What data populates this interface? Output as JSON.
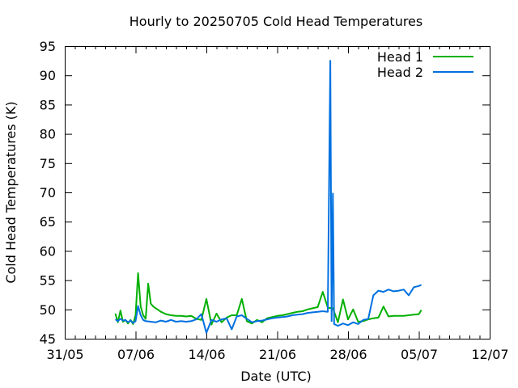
{
  "chart_data": {
    "type": "line",
    "title": "Hourly to 20250705 Cold Head Temperatures",
    "xlabel": "Date (UTC)",
    "ylabel": "Cold Head Temperatures (K)",
    "x_axis_type": "date",
    "xlim": [
      "2025-05-31",
      "2025-07-12"
    ],
    "ylim": [
      45,
      95
    ],
    "x_tick_labels": [
      "31/05",
      "07/06",
      "14/06",
      "21/06",
      "28/06",
      "05/07",
      "12/07"
    ],
    "x_tick_dates": [
      "2025-05-31",
      "2025-06-07",
      "2025-06-14",
      "2025-06-21",
      "2025-06-28",
      "2025-07-05",
      "2025-07-12"
    ],
    "y_ticks": [
      45,
      50,
      55,
      60,
      65,
      70,
      75,
      80,
      85,
      90,
      95
    ],
    "grid": false,
    "legend_position": "top-right",
    "colors": {
      "Head 1": "#00b000",
      "Head 2": "#0070e0"
    },
    "series": [
      {
        "name": "Head 1",
        "x": [
          "2025-06-05 00:00",
          "2025-06-05 06:00",
          "2025-06-05 12:00",
          "2025-06-05 18:00",
          "2025-06-06 00:00",
          "2025-06-06 06:00",
          "2025-06-06 12:00",
          "2025-06-06 18:00",
          "2025-06-07 00:00",
          "2025-06-07 06:00",
          "2025-06-07 12:00",
          "2025-06-07 18:00",
          "2025-06-08 00:00",
          "2025-06-08 06:00",
          "2025-06-08 12:00",
          "2025-06-08 18:00",
          "2025-06-09 00:00",
          "2025-06-09 12:00",
          "2025-06-10 00:00",
          "2025-06-10 12:00",
          "2025-06-11 00:00",
          "2025-06-11 12:00",
          "2025-06-12 00:00",
          "2025-06-12 12:00",
          "2025-06-13 00:00",
          "2025-06-13 12:00",
          "2025-06-14 00:00",
          "2025-06-14 12:00",
          "2025-06-15 00:00",
          "2025-06-15 12:00",
          "2025-06-16 00:00",
          "2025-06-16 12:00",
          "2025-06-17 00:00",
          "2025-06-17 12:00",
          "2025-06-18 00:00",
          "2025-06-18 12:00",
          "2025-06-19 00:00",
          "2025-06-19 12:00",
          "2025-06-20 00:00",
          "2025-06-20 12:00",
          "2025-06-21 00:00",
          "2025-06-21 12:00",
          "2025-06-22 00:00",
          "2025-06-22 12:00",
          "2025-06-23 00:00",
          "2025-06-23 12:00",
          "2025-06-24 00:00",
          "2025-06-24 12:00",
          "2025-06-25 00:00",
          "2025-06-25 12:00",
          "2025-06-26 00:00",
          "2025-06-26 12:00",
          "2025-06-27 00:00",
          "2025-06-27 12:00",
          "2025-06-28 00:00",
          "2025-06-28 12:00",
          "2025-06-29 00:00",
          "2025-06-29 12:00",
          "2025-06-30 00:00",
          "2025-06-30 12:00",
          "2025-07-01 00:00",
          "2025-07-01 12:00",
          "2025-07-02 00:00",
          "2025-07-02 12:00",
          "2025-07-03 00:00",
          "2025-07-03 12:00",
          "2025-07-04 00:00",
          "2025-07-04 12:00",
          "2025-07-05 00:00",
          "2025-07-05 06:00"
        ],
        "y": [
          49.3,
          47.8,
          49.8,
          47.9,
          48.2,
          47.6,
          48.2,
          47.5,
          49.0,
          56.2,
          50.5,
          49.0,
          48.4,
          54.4,
          51.0,
          50.5,
          50.2,
          49.6,
          49.2,
          49.0,
          48.9,
          48.9,
          48.8,
          48.9,
          48.4,
          48.2,
          51.8,
          47.4,
          49.3,
          47.8,
          48.6,
          49.0,
          49.0,
          51.8,
          48.0,
          47.6,
          48.2,
          47.8,
          48.5,
          48.7,
          48.9,
          49.0,
          49.2,
          49.4,
          49.6,
          49.7,
          50.0,
          50.2,
          50.4,
          53.0,
          50.3,
          50.2,
          47.8,
          51.7,
          48.3,
          50.0,
          47.9,
          48.0,
          48.3,
          48.5,
          48.6,
          50.5,
          48.8,
          48.9,
          48.9,
          48.9,
          49.0,
          49.1,
          49.2,
          49.9
        ]
      },
      {
        "name": "Head 2",
        "x": [
          "2025-06-05 00:00",
          "2025-06-05 06:00",
          "2025-06-05 12:00",
          "2025-06-05 18:00",
          "2025-06-06 00:00",
          "2025-06-06 06:00",
          "2025-06-06 12:00",
          "2025-06-06 18:00",
          "2025-06-07 00:00",
          "2025-06-07 06:00",
          "2025-06-07 12:00",
          "2025-06-07 18:00",
          "2025-06-08 00:00",
          "2025-06-08 12:00",
          "2025-06-09 00:00",
          "2025-06-09 12:00",
          "2025-06-10 00:00",
          "2025-06-10 12:00",
          "2025-06-11 00:00",
          "2025-06-11 12:00",
          "2025-06-12 00:00",
          "2025-06-12 12:00",
          "2025-06-13 00:00",
          "2025-06-13 12:00",
          "2025-06-14 00:00",
          "2025-06-14 12:00",
          "2025-06-15 00:00",
          "2025-06-15 12:00",
          "2025-06-16 00:00",
          "2025-06-16 12:00",
          "2025-06-17 00:00",
          "2025-06-17 12:00",
          "2025-06-18 00:00",
          "2025-06-18 12:00",
          "2025-06-19 00:00",
          "2025-06-19 12:00",
          "2025-06-20 00:00",
          "2025-06-20 12:00",
          "2025-06-21 00:00",
          "2025-06-21 12:00",
          "2025-06-22 00:00",
          "2025-06-22 12:00",
          "2025-06-23 00:00",
          "2025-06-23 12:00",
          "2025-06-24 00:00",
          "2025-06-24 12:00",
          "2025-06-25 00:00",
          "2025-06-25 12:00",
          "2025-06-26 00:00",
          "2025-06-26 06:00",
          "2025-06-26 09:00",
          "2025-06-26 12:00",
          "2025-06-26 15:00",
          "2025-06-26 18:00",
          "2025-06-27 00:00",
          "2025-06-27 12:00",
          "2025-06-28 00:00",
          "2025-06-28 12:00",
          "2025-06-29 00:00",
          "2025-06-29 12:00",
          "2025-06-30 00:00",
          "2025-06-30 12:00",
          "2025-07-01 00:00",
          "2025-07-01 12:00",
          "2025-07-02 00:00",
          "2025-07-02 12:00",
          "2025-07-03 00:00",
          "2025-07-03 12:00",
          "2025-07-04 00:00",
          "2025-07-04 12:00",
          "2025-07-05 00:00",
          "2025-07-05 06:00"
        ],
        "y": [
          48.3,
          48.0,
          48.4,
          48.1,
          48.2,
          47.8,
          48.1,
          47.7,
          48.0,
          50.6,
          49.0,
          48.2,
          48.0,
          47.9,
          47.8,
          48.1,
          47.9,
          48.2,
          47.9,
          48.0,
          47.9,
          48.0,
          48.3,
          49.2,
          46.0,
          48.2,
          47.9,
          48.3,
          48.5,
          46.6,
          48.8,
          49.0,
          48.4,
          47.8,
          48.0,
          48.1,
          48.3,
          48.5,
          48.6,
          48.7,
          48.8,
          49.0,
          49.1,
          49.2,
          49.4,
          49.5,
          49.6,
          49.7,
          49.6,
          92.5,
          48.0,
          69.8,
          47.5,
          47.4,
          47.2,
          47.6,
          47.3,
          47.8,
          47.5,
          48.2,
          48.4,
          52.4,
          53.2,
          53.0,
          53.4,
          53.1,
          53.2,
          53.4,
          52.4,
          53.8,
          54.0,
          54.2
        ]
      }
    ]
  }
}
